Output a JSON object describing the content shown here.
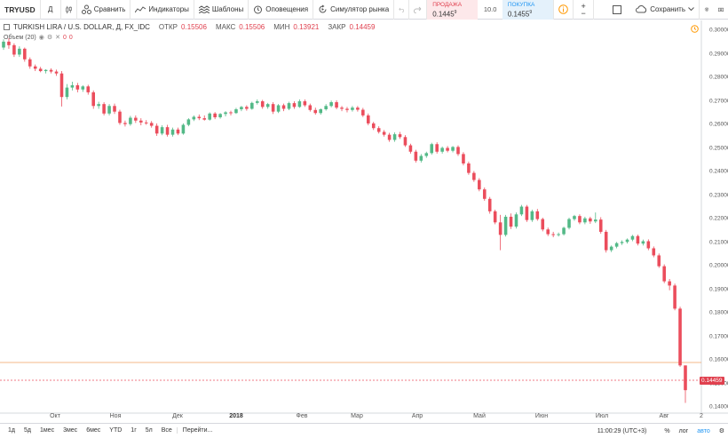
{
  "toolbar": {
    "symbol": "TRYUSD",
    "interval": "Д",
    "compare": "Сравнить",
    "indicators": "Индикаторы",
    "templates": "Шаблоны",
    "alerts": "Оповещения",
    "replay": "Симулятор рынка",
    "sell_label": "ПРОДАЖА",
    "sell_value": "0.1445",
    "sell_sup": "9",
    "spread": "10.0",
    "buy_label": "ПОКУПКА",
    "buy_value": "0.1455",
    "buy_sup": "9",
    "save": "Сохранить"
  },
  "legend": {
    "title": "TURKISH LIRA / U.S. DOLLAR, Д, FX_IDC",
    "open_label": "ОТКР",
    "open": "0.15506",
    "high_label": "МАКС",
    "high": "0.15506",
    "low_label": "МИН",
    "low": "0.13921",
    "close_label": "ЗАКР",
    "close": "0.14459",
    "volume_label": "Объем (20)",
    "volume_value1": "0",
    "volume_value2": "0"
  },
  "price_axis": [
    "0.30000",
    "0.29000",
    "0.28000",
    "0.27000",
    "0.26000",
    "0.25000",
    "0.24000",
    "0.23000",
    "0.22000",
    "0.21000",
    "0.20000",
    "0.19000",
    "0.18000",
    "0.17000",
    "0.16000",
    "0.15000",
    "0.14000"
  ],
  "last_price": "0.14459",
  "time_axis": [
    {
      "label": "Окт",
      "bold": false
    },
    {
      "label": "Ноя",
      "bold": false
    },
    {
      "label": "Дек",
      "bold": false
    },
    {
      "label": "2018",
      "bold": true
    },
    {
      "label": "Фев",
      "bold": false
    },
    {
      "label": "Мар",
      "bold": false
    },
    {
      "label": "Апр",
      "bold": false
    },
    {
      "label": "Май",
      "bold": false
    },
    {
      "label": "Июн",
      "bold": false
    },
    {
      "label": "Июл",
      "bold": false
    },
    {
      "label": "Авг",
      "bold": false
    },
    {
      "label": "2",
      "bold": false
    }
  ],
  "bottom": {
    "ranges": [
      "1д",
      "5д",
      "1мес",
      "3мес",
      "6мес",
      "YTD",
      "1г",
      "5л",
      "Все"
    ],
    "goto": "Перейти...",
    "clock": "11:00:29 (UTC+3)",
    "percent": "%",
    "log": "лог",
    "auto": "авто"
  },
  "colors": {
    "up": "#53b987",
    "down": "#eb4d5c",
    "accent": "#2196f3",
    "alert": "#ff9800"
  },
  "chart_data": {
    "type": "candlestick",
    "title": "TURKISH LIRA / U.S. DOLLAR, Д, FX_IDC",
    "ylim": [
      0.1375,
      0.3015
    ],
    "candles_ohlc": [
      [
        0.29,
        0.2935,
        0.289,
        0.2925
      ],
      [
        0.2925,
        0.294,
        0.2895,
        0.291
      ],
      [
        0.291,
        0.2918,
        0.286,
        0.287
      ],
      [
        0.287,
        0.2905,
        0.286,
        0.2895
      ],
      [
        0.2895,
        0.29,
        0.284,
        0.285
      ],
      [
        0.285,
        0.2858,
        0.281,
        0.282
      ],
      [
        0.282,
        0.2828,
        0.28,
        0.281
      ],
      [
        0.281,
        0.2818,
        0.2795,
        0.28
      ],
      [
        0.28,
        0.2808,
        0.279,
        0.2805
      ],
      [
        0.2805,
        0.2812,
        0.279,
        0.2798
      ],
      [
        0.2798,
        0.2806,
        0.278,
        0.279
      ],
      [
        0.279,
        0.28,
        0.265,
        0.269
      ],
      [
        0.269,
        0.2745,
        0.268,
        0.273
      ],
      [
        0.273,
        0.2755,
        0.2718,
        0.274
      ],
      [
        0.274,
        0.275,
        0.271,
        0.2722
      ],
      [
        0.2722,
        0.274,
        0.2712,
        0.2735
      ],
      [
        0.2735,
        0.2742,
        0.27,
        0.271
      ],
      [
        0.271,
        0.2718,
        0.264,
        0.2652
      ],
      [
        0.2652,
        0.267,
        0.264,
        0.266
      ],
      [
        0.266,
        0.2668,
        0.2612,
        0.262
      ],
      [
        0.262,
        0.266,
        0.2612,
        0.2652
      ],
      [
        0.2652,
        0.2662,
        0.2618,
        0.2628
      ],
      [
        0.2628,
        0.2636,
        0.2572,
        0.258
      ],
      [
        0.258,
        0.259,
        0.2565,
        0.2575
      ],
      [
        0.2575,
        0.261,
        0.2568,
        0.2602
      ],
      [
        0.2602,
        0.2612,
        0.258,
        0.259
      ],
      [
        0.259,
        0.26,
        0.257,
        0.2582
      ],
      [
        0.2582,
        0.2592,
        0.2572,
        0.258
      ],
      [
        0.258,
        0.2588,
        0.256,
        0.2568
      ],
      [
        0.2568,
        0.2578,
        0.2525,
        0.2535
      ],
      [
        0.2535,
        0.257,
        0.2528,
        0.2562
      ],
      [
        0.2562,
        0.2572,
        0.2522,
        0.253
      ],
      [
        0.253,
        0.256,
        0.2522,
        0.2552
      ],
      [
        0.2552,
        0.256,
        0.2528,
        0.2535
      ],
      [
        0.2535,
        0.2578,
        0.253,
        0.2572
      ],
      [
        0.2572,
        0.26,
        0.2566,
        0.2595
      ],
      [
        0.2595,
        0.2612,
        0.2588,
        0.2606
      ],
      [
        0.2606,
        0.2616,
        0.2592,
        0.26
      ],
      [
        0.26,
        0.2612,
        0.259,
        0.2594
      ],
      [
        0.2594,
        0.2625,
        0.259,
        0.262
      ],
      [
        0.262,
        0.2626,
        0.2596,
        0.2604
      ],
      [
        0.2604,
        0.2622,
        0.2598,
        0.2618
      ],
      [
        0.2618,
        0.263,
        0.2608,
        0.2625
      ],
      [
        0.2625,
        0.2632,
        0.2612,
        0.2622
      ],
      [
        0.2622,
        0.2644,
        0.2618,
        0.2638
      ],
      [
        0.2638,
        0.2652,
        0.263,
        0.2648
      ],
      [
        0.2648,
        0.2655,
        0.2632,
        0.264
      ],
      [
        0.264,
        0.267,
        0.2636,
        0.2665
      ],
      [
        0.2665,
        0.268,
        0.2658,
        0.2672
      ],
      [
        0.2672,
        0.2678,
        0.264,
        0.2648
      ],
      [
        0.2648,
        0.2665,
        0.264,
        0.266
      ],
      [
        0.266,
        0.2668,
        0.2618,
        0.2628
      ],
      [
        0.2628,
        0.266,
        0.2622,
        0.2655
      ],
      [
        0.2655,
        0.2662,
        0.263,
        0.264
      ],
      [
        0.264,
        0.267,
        0.2634,
        0.2664
      ],
      [
        0.2664,
        0.2672,
        0.264,
        0.2648
      ],
      [
        0.2648,
        0.268,
        0.2644,
        0.2672
      ],
      [
        0.2672,
        0.268,
        0.2648,
        0.2655
      ],
      [
        0.2655,
        0.2662,
        0.2628,
        0.2635
      ],
      [
        0.2635,
        0.2645,
        0.2615,
        0.2622
      ],
      [
        0.2622,
        0.2642,
        0.2615,
        0.2638
      ],
      [
        0.2638,
        0.266,
        0.2632,
        0.2652
      ],
      [
        0.2652,
        0.2675,
        0.2646,
        0.2668
      ],
      [
        0.2668,
        0.2676,
        0.2638,
        0.2645
      ],
      [
        0.2645,
        0.2652,
        0.263,
        0.264
      ],
      [
        0.264,
        0.2648,
        0.2625,
        0.2635
      ],
      [
        0.2635,
        0.2652,
        0.2628,
        0.2645
      ],
      [
        0.2645,
        0.2652,
        0.2628,
        0.2636
      ],
      [
        0.2636,
        0.2644,
        0.2605,
        0.2612
      ],
      [
        0.2612,
        0.262,
        0.257,
        0.2578
      ],
      [
        0.2578,
        0.2585,
        0.255,
        0.2558
      ],
      [
        0.2558,
        0.2566,
        0.2535,
        0.2542
      ],
      [
        0.2542,
        0.255,
        0.2522,
        0.253
      ],
      [
        0.253,
        0.2538,
        0.25,
        0.2508
      ],
      [
        0.2508,
        0.254,
        0.25,
        0.2532
      ],
      [
        0.2532,
        0.2542,
        0.2512,
        0.252
      ],
      [
        0.252,
        0.2528,
        0.2478,
        0.2485
      ],
      [
        0.2485,
        0.2492,
        0.245,
        0.2458
      ],
      [
        0.2458,
        0.2466,
        0.2412,
        0.242
      ],
      [
        0.242,
        0.2448,
        0.2412,
        0.244
      ],
      [
        0.244,
        0.2458,
        0.2432,
        0.2452
      ],
      [
        0.2452,
        0.2496,
        0.2445,
        0.249
      ],
      [
        0.249,
        0.2498,
        0.245,
        0.2458
      ],
      [
        0.2458,
        0.248,
        0.245,
        0.2474
      ],
      [
        0.2474,
        0.2482,
        0.2455,
        0.2462
      ],
      [
        0.2462,
        0.2482,
        0.2455,
        0.2478
      ],
      [
        0.2478,
        0.2485,
        0.244,
        0.2448
      ],
      [
        0.2448,
        0.2456,
        0.24,
        0.2408
      ],
      [
        0.2408,
        0.2416,
        0.236,
        0.2368
      ],
      [
        0.2368,
        0.2376,
        0.233,
        0.2338
      ],
      [
        0.2338,
        0.2346,
        0.229,
        0.2298
      ],
      [
        0.2298,
        0.2306,
        0.225,
        0.2258
      ],
      [
        0.2258,
        0.2266,
        0.2195,
        0.2205
      ],
      [
        0.2205,
        0.2212,
        0.215,
        0.2158
      ],
      [
        0.2158,
        0.219,
        0.204,
        0.2105
      ],
      [
        0.2105,
        0.219,
        0.2098,
        0.2182
      ],
      [
        0.2182,
        0.2196,
        0.213,
        0.214
      ],
      [
        0.214,
        0.22,
        0.2132,
        0.2192
      ],
      [
        0.2192,
        0.2232,
        0.2185,
        0.2225
      ],
      [
        0.2225,
        0.2232,
        0.216,
        0.2168
      ],
      [
        0.2168,
        0.2212,
        0.216,
        0.2205
      ],
      [
        0.2205,
        0.2215,
        0.2165,
        0.2172
      ],
      [
        0.2172,
        0.2178,
        0.212,
        0.2128
      ],
      [
        0.2128,
        0.2136,
        0.21,
        0.2108
      ],
      [
        0.2108,
        0.2118,
        0.2095,
        0.2105
      ],
      [
        0.2105,
        0.2115,
        0.2098,
        0.2108
      ],
      [
        0.2108,
        0.214,
        0.2102,
        0.2135
      ],
      [
        0.2135,
        0.2178,
        0.2128,
        0.2172
      ],
      [
        0.2172,
        0.219,
        0.2165,
        0.2185
      ],
      [
        0.2185,
        0.2192,
        0.215,
        0.2158
      ],
      [
        0.2158,
        0.2182,
        0.215,
        0.2175
      ],
      [
        0.2175,
        0.2182,
        0.2152,
        0.2162
      ],
      [
        0.2162,
        0.22,
        0.2155,
        0.217
      ],
      [
        0.217,
        0.218,
        0.211,
        0.2118
      ],
      [
        0.2118,
        0.2126,
        0.203,
        0.204
      ],
      [
        0.204,
        0.206,
        0.2032,
        0.2055
      ],
      [
        0.2055,
        0.2075,
        0.2048,
        0.207
      ],
      [
        0.207,
        0.2082,
        0.2062,
        0.2075
      ],
      [
        0.2075,
        0.209,
        0.2068,
        0.2085
      ],
      [
        0.2085,
        0.2105,
        0.2078,
        0.21
      ],
      [
        0.21,
        0.2106,
        0.206,
        0.2068
      ],
      [
        0.2068,
        0.2085,
        0.206,
        0.2078
      ],
      [
        0.2078,
        0.2086,
        0.204,
        0.2048
      ],
      [
        0.2048,
        0.2056,
        0.201,
        0.2018
      ],
      [
        0.2018,
        0.2026,
        0.1965,
        0.1972
      ],
      [
        0.1972,
        0.198,
        0.19,
        0.1908
      ],
      [
        0.1908,
        0.1918,
        0.187,
        0.189
      ],
      [
        0.189,
        0.1898,
        0.1785,
        0.1792
      ],
      [
        0.1792,
        0.18,
        0.1545,
        0.1551
      ],
      [
        0.1551,
        0.1551,
        0.1392,
        0.1446
      ]
    ]
  }
}
